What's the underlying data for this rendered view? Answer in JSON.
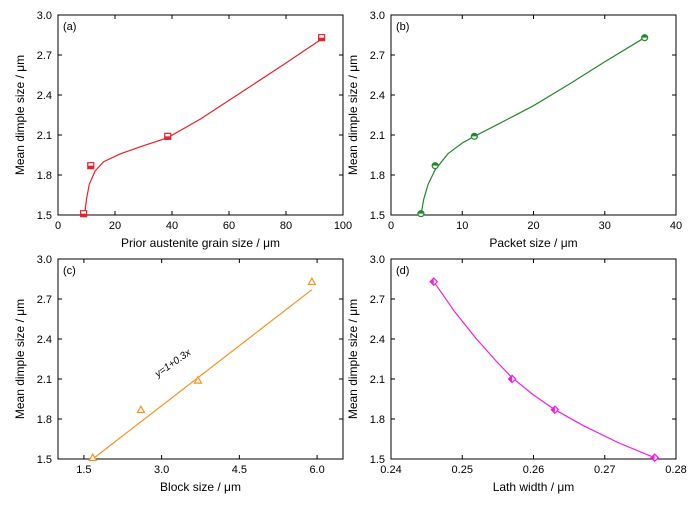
{
  "chart_data": [
    {
      "panel": "(a)",
      "type": "scatter",
      "xlabel": "Prior austenite grain size / μm",
      "ylabel": "Mean dimple size / μm",
      "xlim": [
        0,
        100
      ],
      "ylim": [
        1.5,
        3.0
      ],
      "xticks": [
        0,
        20,
        40,
        60,
        80,
        100
      ],
      "yticks": [
        1.5,
        1.8,
        2.1,
        2.4,
        2.7,
        3.0
      ],
      "xtick_labels": [
        "0",
        "20",
        "40",
        "60",
        "80",
        "100"
      ],
      "ytick_labels": [
        "1.5",
        "1.8",
        "2.1",
        "2.4",
        "2.7",
        "3.0"
      ],
      "marker": "square",
      "color": "#e8212b",
      "points": [
        {
          "x": 9,
          "y": 1.51
        },
        {
          "x": 11.5,
          "y": 1.87
        },
        {
          "x": 38.5,
          "y": 2.09
        },
        {
          "x": 92.5,
          "y": 2.83
        }
      ],
      "curve": [
        [
          9.3,
          1.5
        ],
        [
          10,
          1.62
        ],
        [
          11,
          1.73
        ],
        [
          13,
          1.83
        ],
        [
          16,
          1.9
        ],
        [
          22,
          1.96
        ],
        [
          30,
          2.02
        ],
        [
          38.5,
          2.08
        ],
        [
          50,
          2.22
        ],
        [
          65,
          2.43
        ],
        [
          80,
          2.64
        ],
        [
          92.5,
          2.82
        ]
      ],
      "annotation": ""
    },
    {
      "panel": "(b)",
      "type": "scatter",
      "xlabel": "Packet size / μm",
      "ylabel": "Mean dimple size / μm",
      "xlim": [
        0,
        40
      ],
      "ylim": [
        1.5,
        3.0
      ],
      "xticks": [
        0,
        10,
        20,
        30,
        40
      ],
      "yticks": [
        1.5,
        1.8,
        2.1,
        2.4,
        2.7,
        3.0
      ],
      "xtick_labels": [
        "0",
        "10",
        "20",
        "30",
        "40"
      ],
      "ytick_labels": [
        "1.5",
        "1.8",
        "2.1",
        "2.4",
        "2.7",
        "3.0"
      ],
      "marker": "circle",
      "color": "#1f8a2a",
      "points": [
        {
          "x": 4.2,
          "y": 1.51
        },
        {
          "x": 6.2,
          "y": 1.87
        },
        {
          "x": 11.7,
          "y": 2.09
        },
        {
          "x": 35.6,
          "y": 2.83
        }
      ],
      "curve": [
        [
          4.2,
          1.5
        ],
        [
          4.6,
          1.62
        ],
        [
          5.2,
          1.73
        ],
        [
          6.2,
          1.84
        ],
        [
          8,
          1.96
        ],
        [
          10,
          2.04
        ],
        [
          11.7,
          2.09
        ],
        [
          15,
          2.18
        ],
        [
          20,
          2.32
        ],
        [
          25,
          2.48
        ],
        [
          30,
          2.65
        ],
        [
          35.6,
          2.83
        ]
      ],
      "annotation": ""
    },
    {
      "panel": "(c)",
      "type": "scatter",
      "xlabel": "Block size / μm",
      "ylabel": "Mean dimple size / μm",
      "xlim": [
        1.0,
        6.5
      ],
      "ylim": [
        1.5,
        3.0
      ],
      "xticks": [
        1.5,
        3.0,
        4.5,
        6.0
      ],
      "yticks": [
        1.5,
        1.8,
        2.1,
        2.4,
        2.7,
        3.0
      ],
      "xtick_labels": [
        "1.5",
        "3.0",
        "4.5",
        "6.0"
      ],
      "ytick_labels": [
        "1.5",
        "1.8",
        "2.1",
        "2.4",
        "2.7",
        "3.0"
      ],
      "marker": "triangle",
      "color": "#f7931e",
      "points": [
        {
          "x": 1.67,
          "y": 1.51
        },
        {
          "x": 2.6,
          "y": 1.87
        },
        {
          "x": 3.7,
          "y": 2.09
        },
        {
          "x": 5.9,
          "y": 2.83
        }
      ],
      "curve": [
        [
          1.67,
          1.5
        ],
        [
          5.9,
          2.77
        ]
      ],
      "annotation": "y=1+0.3x",
      "annotation_at": [
        3.25,
        2.2
      ]
    },
    {
      "panel": "(d)",
      "type": "scatter",
      "xlabel": "Lath width / μm",
      "ylabel": "Mean dimple size / μm",
      "xlim": [
        0.24,
        0.28
      ],
      "ylim": [
        1.5,
        3.0
      ],
      "xticks": [
        0.24,
        0.25,
        0.26,
        0.27,
        0.28
      ],
      "yticks": [
        1.5,
        1.8,
        2.1,
        2.4,
        2.7,
        3.0
      ],
      "xtick_labels": [
        "0.24",
        "0.25",
        "0.26",
        "0.27",
        "0.28"
      ],
      "ytick_labels": [
        "1.5",
        "1.8",
        "2.1",
        "2.4",
        "2.7",
        "3.0"
      ],
      "marker": "diamond",
      "color": "#ee1ee6",
      "points": [
        {
          "x": 0.246,
          "y": 2.83
        },
        {
          "x": 0.257,
          "y": 2.1
        },
        {
          "x": 0.263,
          "y": 1.87
        },
        {
          "x": 0.277,
          "y": 1.51
        }
      ],
      "curve": [
        [
          0.246,
          2.83
        ],
        [
          0.249,
          2.6
        ],
        [
          0.252,
          2.4
        ],
        [
          0.255,
          2.22
        ],
        [
          0.257,
          2.11
        ],
        [
          0.26,
          1.98
        ],
        [
          0.263,
          1.87
        ],
        [
          0.267,
          1.75
        ],
        [
          0.272,
          1.62
        ],
        [
          0.277,
          1.51
        ]
      ],
      "annotation": ""
    }
  ]
}
